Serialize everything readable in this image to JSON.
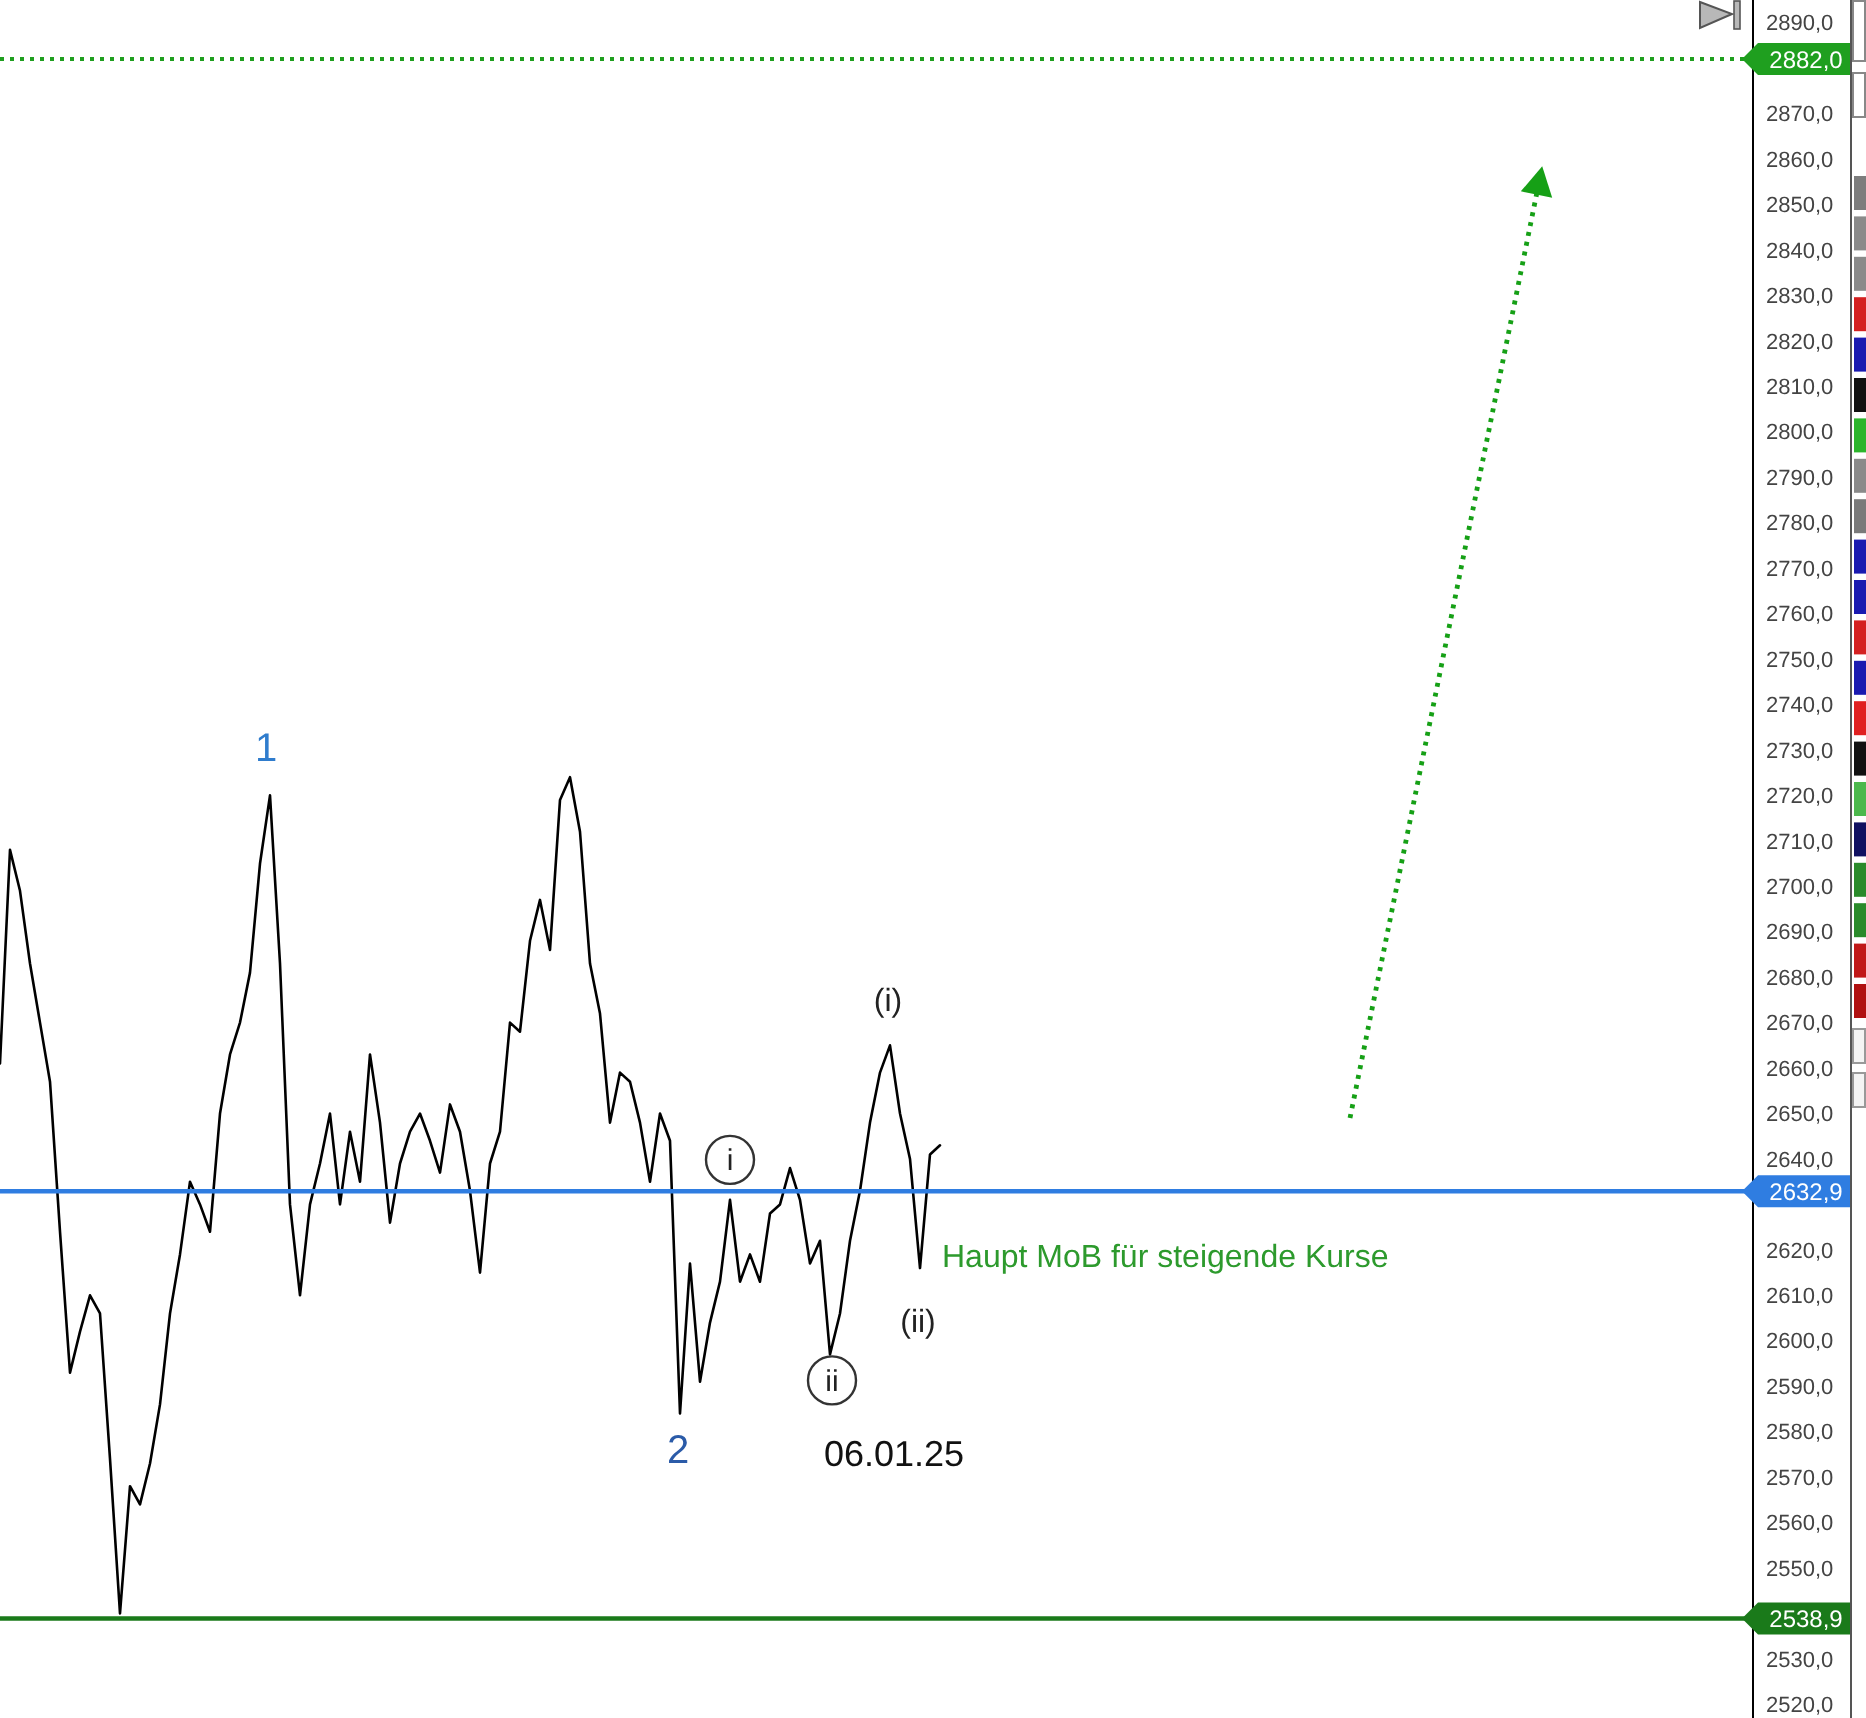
{
  "chart_data": {
    "type": "line",
    "categories": [
      null,
      null,
      null,
      null,
      null,
      null,
      null,
      null,
      null,
      null,
      null,
      null,
      null,
      null,
      null,
      null,
      null,
      null,
      null,
      null,
      null,
      null,
      null,
      null,
      null,
      null,
      null,
      null,
      null,
      null,
      null,
      null,
      null,
      null,
      null,
      null,
      null,
      null,
      null,
      null,
      null,
      null,
      null,
      null,
      null,
      null,
      null,
      null,
      null,
      null,
      null,
      null,
      null,
      null,
      null,
      null,
      null,
      null,
      null,
      null,
      null,
      null,
      null,
      null,
      null,
      null,
      null,
      null,
      null,
      null,
      null,
      null,
      null,
      null,
      null,
      null,
      null,
      null,
      null,
      null,
      null,
      null,
      null,
      null,
      null,
      null,
      null,
      null,
      null,
      null,
      null,
      null,
      null,
      null,
      null,
      null,
      null,
      null,
      null,
      null,
      null,
      null,
      null,
      null,
      null,
      null,
      null,
      null,
      null,
      null,
      null,
      null,
      null,
      null,
      null,
      null,
      null,
      null,
      null,
      null,
      null,
      null,
      null,
      null,
      null,
      null,
      null,
      null,
      null,
      null,
      null,
      null,
      null,
      null,
      null,
      null,
      null,
      null,
      null,
      null,
      null,
      null,
      null,
      null,
      null,
      null,
      null,
      null,
      null,
      null,
      null,
      null,
      null,
      null,
      null,
      null,
      null,
      null,
      null,
      null,
      null,
      null,
      null,
      null,
      null,
      null,
      null,
      null,
      null,
      null,
      null,
      null,
      null,
      null,
      null,
      null
    ],
    "series": [
      {
        "color": "#000000",
        "values": [
          2661,
          2708,
          2699,
          2683,
          2670,
          2657,
          2624,
          2593,
          2602,
          2610,
          2606,
          2574,
          2540,
          2568,
          2564,
          2573,
          2586,
          2606,
          2619,
          2635,
          2630,
          2624,
          2650,
          2663,
          2670,
          2681,
          2705,
          2720,
          2683,
          2630,
          2610,
          2630,
          2639,
          2650,
          2630,
          2646,
          2635,
          2663,
          2648,
          2626,
          2639,
          2646,
          2650,
          2644,
          2637,
          2652,
          2646,
          2633,
          2615,
          2639,
          2646,
          2670,
          2668,
          2688,
          2697,
          2686,
          2719,
          2724,
          2712,
          2683,
          2672,
          2648,
          2659,
          2657,
          2648,
          2635,
          2650,
          2644,
          2584,
          2617,
          2591,
          2604,
          2613,
          2631,
          2613,
          2619,
          2613,
          2628,
          2630,
          2638,
          2631,
          2617,
          2622,
          2597,
          2606,
          2622,
          2633,
          2648,
          2659,
          2665,
          2650,
          2640,
          2616,
          2641,
          2643,
          null,
          null,
          null,
          null,
          null,
          null,
          null,
          null,
          null,
          null,
          null,
          null,
          null,
          null,
          null,
          null,
          null,
          null,
          null,
          null,
          null,
          null,
          null,
          null,
          null,
          null,
          null,
          null,
          null,
          null,
          null,
          null,
          null,
          null,
          null,
          null,
          null,
          null,
          null,
          null,
          null,
          null,
          null,
          null,
          null,
          null,
          null,
          null,
          null,
          null,
          null,
          null,
          null,
          null,
          null,
          null,
          null,
          null,
          null,
          null,
          null,
          null,
          null,
          null,
          null,
          null,
          null,
          null,
          null,
          null,
          null,
          null,
          null,
          null,
          null,
          null,
          null,
          null,
          null,
          null,
          null
        ]
      },
      {
        "color": "#16a016",
        "line_style": "dotted",
        "values": [
          null,
          null,
          null,
          null,
          null,
          null,
          null,
          null,
          null,
          null,
          null,
          null,
          null,
          null,
          null,
          null,
          null,
          null,
          null,
          null,
          null,
          null,
          null,
          null,
          null,
          null,
          null,
          null,
          null,
          null,
          null,
          null,
          null,
          null,
          null,
          null,
          null,
          null,
          null,
          null,
          null,
          null,
          null,
          null,
          null,
          null,
          null,
          null,
          null,
          null,
          null,
          null,
          null,
          null,
          null,
          null,
          null,
          null,
          null,
          null,
          null,
          null,
          null,
          null,
          null,
          null,
          null,
          null,
          null,
          null,
          null,
          null,
          null,
          null,
          null,
          null,
          null,
          null,
          null,
          null,
          null,
          null,
          null,
          null,
          null,
          null,
          null,
          null,
          null,
          null,
          null,
          null,
          null,
          null,
          null,
          null,
          null,
          null,
          null,
          null,
          null,
          null,
          null,
          null,
          null,
          null,
          null,
          null,
          null,
          null,
          null,
          null,
          null,
          null,
          null,
          null,
          null,
          null,
          null,
          null,
          null,
          null,
          null,
          null,
          null,
          null,
          null,
          null,
          null,
          null,
          null,
          null,
          null,
          null,
          null,
          2649,
          null,
          null,
          null,
          null,
          null,
          null,
          null,
          null,
          null,
          null,
          null,
          null,
          null,
          null,
          null,
          null,
          null,
          null,
          2856,
          null,
          null,
          null,
          null,
          null,
          null,
          null,
          null,
          null,
          null,
          null,
          null,
          null,
          null,
          null,
          null,
          null,
          null,
          null,
          null,
          null
        ]
      }
    ],
    "ylim": [
      2517,
      2895
    ],
    "yticks": [
      {
        "value": 2520,
        "label": "2520,0"
      },
      {
        "value": 2530,
        "label": "2530,0"
      },
      {
        "value": 2550,
        "label": "2550,0"
      },
      {
        "value": 2560,
        "label": "2560,0"
      },
      {
        "value": 2570,
        "label": "2570,0"
      },
      {
        "value": 2580,
        "label": "2580,0"
      },
      {
        "value": 2590,
        "label": "2590,0"
      },
      {
        "value": 2600,
        "label": "2600,0"
      },
      {
        "value": 2610,
        "label": "2610,0"
      },
      {
        "value": 2620,
        "label": "2620,0"
      },
      {
        "value": 2640,
        "label": "2640,0"
      },
      {
        "value": 2650,
        "label": "2650,0"
      },
      {
        "value": 2660,
        "label": "2660,0"
      },
      {
        "value": 2670,
        "label": "2670,0"
      },
      {
        "value": 2680,
        "label": "2680,0"
      },
      {
        "value": 2690,
        "label": "2690,0"
      },
      {
        "value": 2700,
        "label": "2700,0"
      },
      {
        "value": 2710,
        "label": "2710,0"
      },
      {
        "value": 2720,
        "label": "2720,0"
      },
      {
        "value": 2730,
        "label": "2730,0"
      },
      {
        "value": 2740,
        "label": "2740,0"
      },
      {
        "value": 2750,
        "label": "2750,0"
      },
      {
        "value": 2760,
        "label": "2760,0"
      },
      {
        "value": 2770,
        "label": "2770,0"
      },
      {
        "value": 2780,
        "label": "2780,0"
      },
      {
        "value": 2790,
        "label": "2790,0"
      },
      {
        "value": 2800,
        "label": "2800,0"
      },
      {
        "value": 2810,
        "label": "2810,0"
      },
      {
        "value": 2820,
        "label": "2820,0"
      },
      {
        "value": 2830,
        "label": "2830,0"
      },
      {
        "value": 2840,
        "label": "2840,0"
      },
      {
        "value": 2850,
        "label": "2850,0"
      },
      {
        "value": 2860,
        "label": "2860,0"
      },
      {
        "value": 2870,
        "label": "2870,0"
      },
      {
        "value": 2890,
        "label": "2890,0"
      }
    ],
    "tick_labels": "y",
    "ref_lines": [
      {
        "axis": "y",
        "value": 2882.0,
        "label": "2882,0",
        "color": "#1f9f1f",
        "line_style": "dotted"
      },
      {
        "axis": "y",
        "value": 2632.9,
        "label": "2632,9",
        "color": "#2f7de1",
        "line_style": "solid"
      },
      {
        "axis": "y",
        "value": 2538.9,
        "label": "2538,9",
        "color": "#1a7a1a",
        "line_style": "solid"
      }
    ],
    "annotations": [
      {
        "text": "1",
        "y": 2720
      },
      {
        "text": "2",
        "y": 2584
      },
      {
        "text": "i",
        "y": 2631
      },
      {
        "text": "ii",
        "y": 2597
      },
      {
        "text": "(i)",
        "y": 2665
      },
      {
        "text": "(ii)",
        "y": 2616
      },
      "06.01.25",
      {
        "text": "Haupt MoB für steigende Kurse",
        "y": 2632.9
      }
    ]
  }
}
